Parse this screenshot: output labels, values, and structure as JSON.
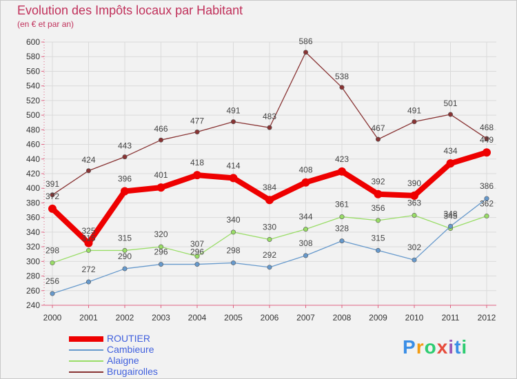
{
  "chart_data": {
    "type": "line",
    "title": "Evolution des Impôts locaux par Habitant",
    "subtitle": "(en € et par an)",
    "xlabel": "",
    "ylabel": "",
    "ylim": [
      240,
      600
    ],
    "ytick_step": 20,
    "grid": true,
    "legend_position": "bottom-left",
    "categories": [
      "2000",
      "2001",
      "2002",
      "2003",
      "2004",
      "2005",
      "2006",
      "2007",
      "2008",
      "2009",
      "2010",
      "2011",
      "2012"
    ],
    "series": [
      {
        "name": "ROUTIER",
        "color": "#ee0000",
        "highlight": true,
        "values": [
          372,
          325,
          396,
          401,
          418,
          414,
          384,
          408,
          423,
          392,
          390,
          434,
          449
        ]
      },
      {
        "name": "Cambieure",
        "color": "#6699cc",
        "highlight": false,
        "values": [
          256,
          272,
          290,
          296,
          296,
          298,
          292,
          308,
          328,
          315,
          302,
          348,
          386
        ]
      },
      {
        "name": "Alaigne",
        "color": "#99dd66",
        "highlight": false,
        "values": [
          298,
          315,
          315,
          320,
          307,
          340,
          330,
          344,
          361,
          356,
          363,
          345,
          362
        ]
      },
      {
        "name": "Brugairolles",
        "color": "#883333",
        "highlight": false,
        "values": [
          391,
          424,
          443,
          466,
          477,
          491,
          483,
          586,
          538,
          467,
          491,
          501,
          468
        ]
      }
    ]
  },
  "logo": {
    "letters": [
      "P",
      "r",
      "o",
      "x",
      "i",
      "t",
      "i"
    ],
    "colors": [
      "#3a8ee6",
      "#f39c12",
      "#2ecc71",
      "#e74c3c",
      "#9b59b6",
      "#3a8ee6",
      "#2ecc71"
    ]
  }
}
